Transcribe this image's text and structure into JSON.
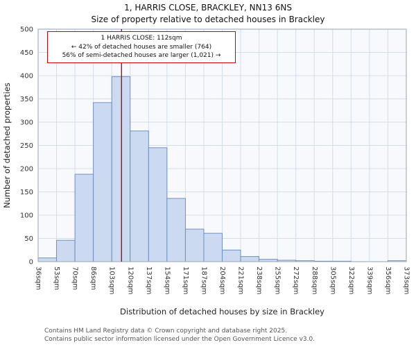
{
  "chart_data": {
    "type": "bar",
    "title": "1, HARRIS CLOSE, BRACKLEY, NN13 6NS",
    "subtitle": "Size of property relative to detached houses in Brackley",
    "xlabel": "Distribution of detached houses by size in Brackley",
    "ylabel": "Number of detached properties",
    "ylim": [
      0,
      500
    ],
    "ytick_step": 50,
    "grid": true,
    "legend_position": "none",
    "bin_edges": [
      36,
      53,
      70,
      86,
      103,
      120,
      137,
      154,
      171,
      187,
      204,
      221,
      238,
      255,
      272,
      288,
      305,
      322,
      339,
      356,
      373
    ],
    "edge_labels": [
      "36sqm",
      "53sqm",
      "70sqm",
      "86sqm",
      "103sqm",
      "120sqm",
      "137sqm",
      "154sqm",
      "171sqm",
      "187sqm",
      "204sqm",
      "221sqm",
      "238sqm",
      "255sqm",
      "272sqm",
      "288sqm",
      "305sqm",
      "322sqm",
      "339sqm",
      "356sqm",
      "373sqm"
    ],
    "values": [
      8,
      46,
      188,
      342,
      398,
      281,
      245,
      136,
      70,
      61,
      25,
      11,
      5,
      3,
      2,
      1,
      1,
      0,
      0,
      2
    ],
    "marker": {
      "value": 112,
      "label": "1 HARRIS CLOSE: 112sqm",
      "color": "#990000"
    },
    "annotation": [
      "1 HARRIS CLOSE: 112sqm",
      "← 42% of detached houses are smaller (764)",
      "56% of semi-detached houses are larger (1,021) →"
    ],
    "colors": {
      "bar_fill": "#ccdaf1",
      "bar_stroke": "#6488bd",
      "grid": "#d4ddeb",
      "plot_bg": "#f7f9fd",
      "spine": "#9aa4b5",
      "tick_text": "#333333",
      "annotation_border": "#cc0000"
    }
  },
  "footer": {
    "line1": "Contains HM Land Registry data © Crown copyright and database right 2025.",
    "line2": "Contains public sector information licensed under the Open Government Licence v3.0."
  }
}
